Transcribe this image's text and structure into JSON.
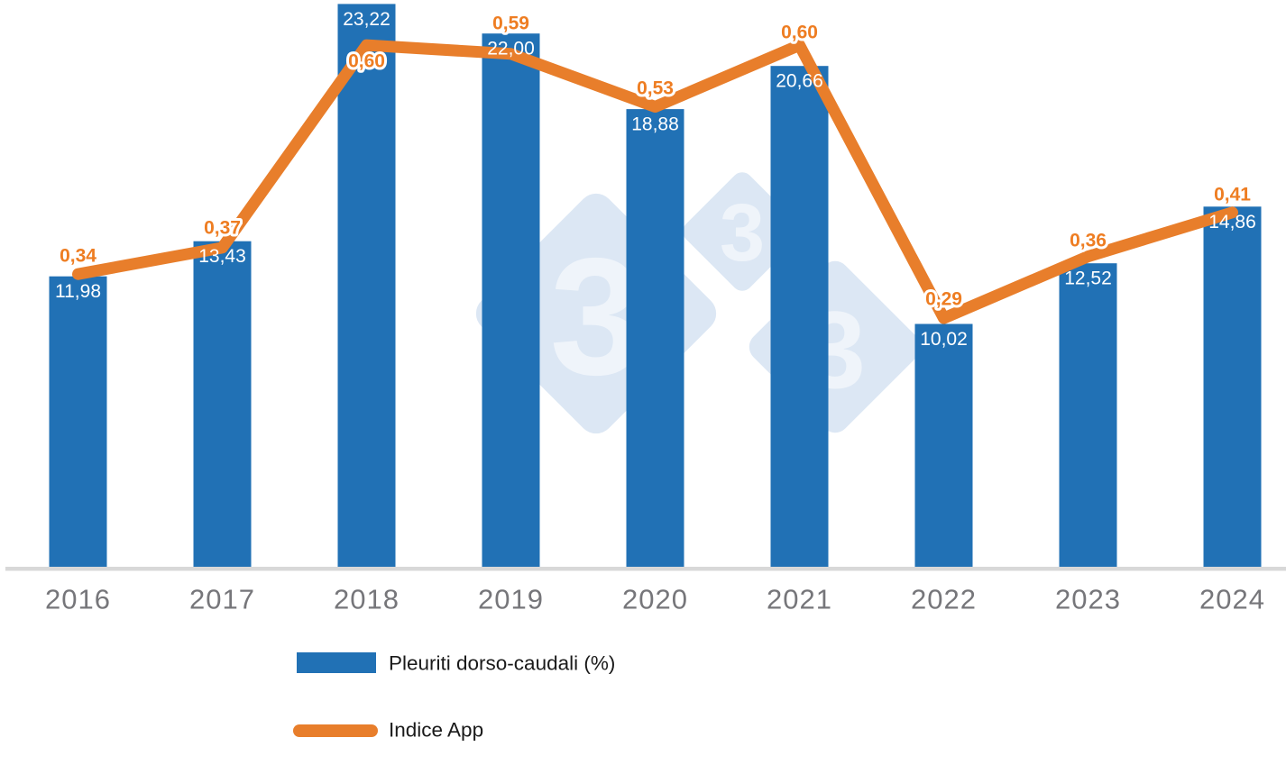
{
  "chart_data": {
    "type": "combo-bar-line",
    "categories": [
      "2016",
      "2017",
      "2018",
      "2019",
      "2020",
      "2021",
      "2022",
      "2023",
      "2024"
    ],
    "series": [
      {
        "name": "Pleuriti dorso-caudali (%)",
        "type": "bar",
        "color": "#2171B5",
        "values": [
          11.98,
          13.43,
          23.22,
          22.0,
          18.88,
          20.66,
          10.02,
          12.52,
          14.86
        ],
        "value_labels": [
          "11,98",
          "13,43",
          "23,22",
          "22,00",
          "18,88",
          "20,66",
          "10,02",
          "12,52",
          "14,86"
        ],
        "value_label_color": "#FFFFFF"
      },
      {
        "name": "Indice App",
        "type": "line",
        "color": "#E87E2B",
        "values": [
          0.34,
          0.37,
          0.6,
          0.59,
          0.53,
          0.6,
          0.29,
          0.36,
          0.41
        ],
        "value_labels": [
          "0,34",
          "0,37",
          "0,60",
          "0,59",
          "0,53",
          "0,60",
          "0,29",
          "0,36",
          "0,41"
        ],
        "value_label_color": "#EE7D22"
      }
    ],
    "title": "",
    "xlabel": "",
    "ylabel": "",
    "axes": {
      "y_axis_visible": false,
      "gridlines": false,
      "x_axis_line_color": "#D8D8D8",
      "x_tick_label_color": "#76767A"
    },
    "bar_axis_range": [
      0,
      23.22
    ],
    "line_axis_range": [
      0,
      0.65
    ],
    "legend_position": "bottom-left",
    "background_color": "#FFFFFF"
  },
  "watermark": {
    "glyph": "3",
    "diamond_color": "#DCE7F4",
    "glyph_color": "#EFF4FA"
  }
}
